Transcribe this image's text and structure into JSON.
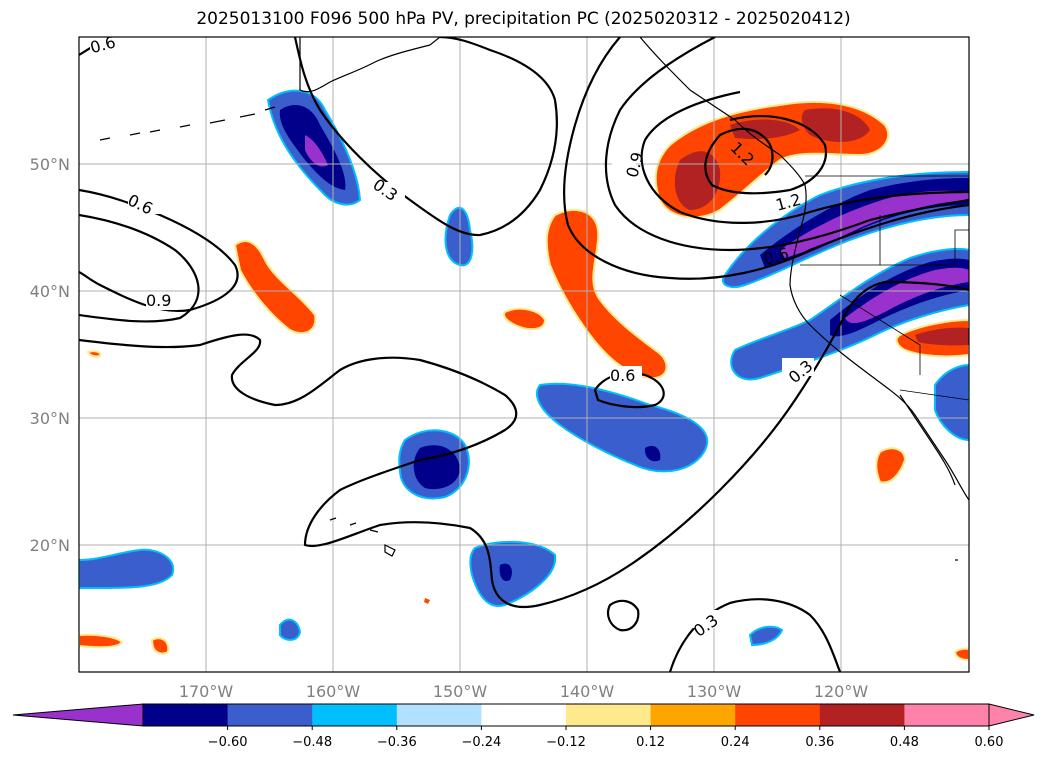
{
  "title": "2025013100 F096 500 hPa PV, precipitation PC (2025020312 - 2025020412)",
  "map": {
    "lon_ticks": [
      "170°W",
      "160°W",
      "150°W",
      "140°W",
      "130°W",
      "120°W"
    ],
    "lat_ticks": [
      "50°N",
      "40°N",
      "30°N",
      "20°N"
    ],
    "contour_labels": [
      "0.6",
      "0.3",
      "0.6",
      "0.9",
      "0.9",
      "1.2",
      "1.2",
      "0.6",
      "0.6",
      "0.3",
      "0.3"
    ]
  },
  "colorbar": {
    "ticks": [
      "−0.60",
      "−0.48",
      "−0.36",
      "−0.24",
      "−0.12",
      "0.12",
      "0.24",
      "0.36",
      "0.48",
      "0.60"
    ],
    "colors": [
      "#9932cc",
      "#00008b",
      "#3a5fcd",
      "#00bfff",
      "#b0e2ff",
      "#ffffff",
      "#fee98c",
      "#ffa500",
      "#ff4500",
      "#b22222",
      "#ff82ab",
      "#ff82ab"
    ]
  },
  "chart_data": {
    "type": "map",
    "title": "2025013100 F096 500 hPa PV, precipitation PC (2025020312 - 2025020412)",
    "region": {
      "lon_range": [
        -180,
        -110
      ],
      "lat_range": [
        10,
        60
      ]
    },
    "contour_field": "500 hPa PV",
    "contour_levels_labeled": [
      0.3,
      0.6,
      0.9,
      1.2
    ],
    "shaded_field": "precipitation PC",
    "colorbar_levels": [
      -0.6,
      -0.48,
      -0.36,
      -0.24,
      -0.12,
      0.12,
      0.24,
      0.36,
      0.48,
      0.6
    ],
    "colorbar_extend": "both",
    "grid": true
  }
}
